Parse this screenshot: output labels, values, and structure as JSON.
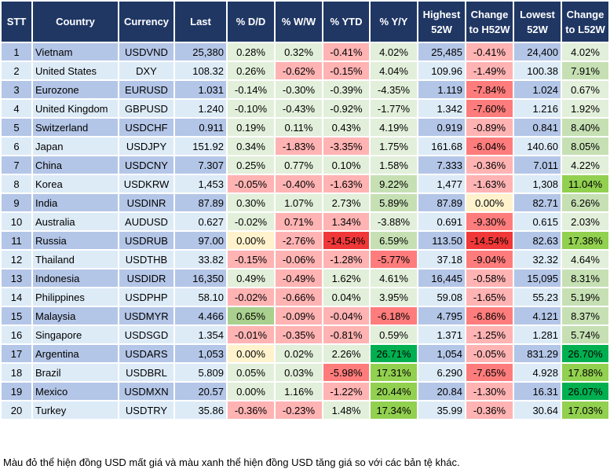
{
  "headers": [
    "STT",
    "Country",
    "Currency",
    "Last",
    "% D/D",
    "% W/W",
    "% YTD",
    "% Y/Y",
    "Highest 52W",
    "Change to H52W",
    "Lowest 52W",
    "Change to L52W"
  ],
  "colors": {
    "header_bg": "#203764",
    "row_odd": "#b4c6e7",
    "row_even": "#ddebf7",
    "g1": "#e2efda",
    "g2": "#c6e0b4",
    "g3": "#a9d08e",
    "g4": "#92d050",
    "g5": "#00b050",
    "r1": "#ffb3b3",
    "r2": "#ff7c7c",
    "r3": "#f03838",
    "y": "#fff2cc"
  },
  "rows": [
    {
      "stt": "1",
      "country": "Vietnam",
      "currency": "USDVND",
      "last": "25,380",
      "dd": "0.28%",
      "ww": "0.32%",
      "ytd": "-0.41%",
      "yy": "4.02%",
      "high": "25,485",
      "chh": "-0.41%",
      "low": "24,400",
      "chl": "4.02%",
      "heat": [
        "g1",
        "g1",
        "r1",
        "g1",
        "r1",
        "g1"
      ]
    },
    {
      "stt": "2",
      "country": "United States",
      "currency": "DXY",
      "last": "108.32",
      "dd": "0.26%",
      "ww": "-0.62%",
      "ytd": "-0.15%",
      "yy": "4.04%",
      "high": "109.96",
      "chh": "-1.49%",
      "low": "100.38",
      "chl": "7.91%",
      "heat": [
        "g1",
        "r1",
        "r1",
        "g1",
        "r1",
        "g2"
      ]
    },
    {
      "stt": "3",
      "country": "Eurozone",
      "currency": "EURUSD",
      "last": "1.031",
      "dd": "-0.14%",
      "ww": "-0.30%",
      "ytd": "-0.39%",
      "yy": "-4.35%",
      "high": "1.119",
      "chh": "-7.84%",
      "low": "1.024",
      "chl": "0.67%",
      "heat": [
        "g1",
        "g1",
        "g1",
        "g1",
        "r2",
        "g1"
      ]
    },
    {
      "stt": "4",
      "country": "United Kingdom",
      "currency": "GBPUSD",
      "last": "1.240",
      "dd": "-0.10%",
      "ww": "-0.43%",
      "ytd": "-0.92%",
      "yy": "-1.77%",
      "high": "1.342",
      "chh": "-7.60%",
      "low": "1.216",
      "chl": "1.92%",
      "heat": [
        "g1",
        "g1",
        "g1",
        "g1",
        "r2",
        "g1"
      ]
    },
    {
      "stt": "5",
      "country": "Switzerland",
      "currency": "USDCHF",
      "last": "0.911",
      "dd": "0.19%",
      "ww": "0.11%",
      "ytd": "0.43%",
      "yy": "4.19%",
      "high": "0.919",
      "chh": "-0.89%",
      "low": "0.841",
      "chl": "8.40%",
      "heat": [
        "g1",
        "g1",
        "g1",
        "g1",
        "r1",
        "g2"
      ]
    },
    {
      "stt": "6",
      "country": "Japan",
      "currency": "USDJPY",
      "last": "151.92",
      "dd": "0.34%",
      "ww": "-1.83%",
      "ytd": "-3.35%",
      "yy": "1.75%",
      "high": "161.68",
      "chh": "-6.04%",
      "low": "140.60",
      "chl": "8.05%",
      "heat": [
        "g1",
        "r1",
        "r1",
        "g1",
        "r2",
        "g2"
      ]
    },
    {
      "stt": "7",
      "country": "China",
      "currency": "USDCNY",
      "last": "7.307",
      "dd": "0.25%",
      "ww": "0.77%",
      "ytd": "0.10%",
      "yy": "1.58%",
      "high": "7.333",
      "chh": "-0.36%",
      "low": "7.011",
      "chl": "4.22%",
      "heat": [
        "g1",
        "g1",
        "g1",
        "g1",
        "r1",
        "g1"
      ]
    },
    {
      "stt": "8",
      "country": "Korea",
      "currency": "USDKRW",
      "last": "1,453",
      "dd": "-0.05%",
      "ww": "-0.40%",
      "ytd": "-1.63%",
      "yy": "9.22%",
      "high": "1,477",
      "chh": "-1.63%",
      "low": "1,308",
      "chl": "11.04%",
      "heat": [
        "r1",
        "r1",
        "r1",
        "g2",
        "r1",
        "g4"
      ]
    },
    {
      "stt": "9",
      "country": "India",
      "currency": "USDINR",
      "last": "87.89",
      "dd": "0.30%",
      "ww": "1.07%",
      "ytd": "2.73%",
      "yy": "5.89%",
      "high": "87.89",
      "chh": "0.00%",
      "low": "82.71",
      "chl": "6.26%",
      "heat": [
        "g1",
        "g1",
        "g1",
        "g2",
        "y",
        "g2"
      ]
    },
    {
      "stt": "10",
      "country": "Australia",
      "currency": "AUDUSD",
      "last": "0.627",
      "dd": "-0.02%",
      "ww": "0.71%",
      "ytd": "1.34%",
      "yy": "-3.88%",
      "high": "0.691",
      "chh": "-9.30%",
      "low": "0.615",
      "chl": "2.03%",
      "heat": [
        "g1",
        "r1",
        "r1",
        "g1",
        "r2",
        "g1"
      ]
    },
    {
      "stt": "11",
      "country": "Russia",
      "currency": "USDRUB",
      "last": "97.00",
      "dd": "0.00%",
      "ww": "-2.76%",
      "ytd": "-14.54%",
      "yy": "6.59%",
      "high": "113.50",
      "chh": "-14.54%",
      "low": "82.63",
      "chl": "17.38%",
      "heat": [
        "y",
        "r1",
        "r3",
        "g2",
        "r3",
        "g4"
      ]
    },
    {
      "stt": "12",
      "country": "Thailand",
      "currency": "USDTHB",
      "last": "33.82",
      "dd": "-0.15%",
      "ww": "-0.06%",
      "ytd": "-1.28%",
      "yy": "-5.77%",
      "high": "37.18",
      "chh": "-9.04%",
      "low": "32.32",
      "chl": "4.64%",
      "heat": [
        "r1",
        "r1",
        "r1",
        "r2",
        "r2",
        "g1"
      ]
    },
    {
      "stt": "13",
      "country": "Indonesia",
      "currency": "USDIDR",
      "last": "16,350",
      "dd": "0.49%",
      "ww": "-0.49%",
      "ytd": "1.62%",
      "yy": "4.61%",
      "high": "16,445",
      "chh": "-0.58%",
      "low": "15,095",
      "chl": "8.31%",
      "heat": [
        "g1",
        "r1",
        "g1",
        "g1",
        "r1",
        "g2"
      ]
    },
    {
      "stt": "14",
      "country": "Philippines",
      "currency": "USDPHP",
      "last": "58.10",
      "dd": "-0.02%",
      "ww": "-0.66%",
      "ytd": "0.04%",
      "yy": "3.95%",
      "high": "59.08",
      "chh": "-1.65%",
      "low": "55.23",
      "chl": "5.19%",
      "heat": [
        "r1",
        "r1",
        "g1",
        "g1",
        "r1",
        "g2"
      ]
    },
    {
      "stt": "15",
      "country": "Malaysia",
      "currency": "USDMYR",
      "last": "4.466",
      "dd": "0.65%",
      "ww": "-0.09%",
      "ytd": "-0.04%",
      "yy": "-6.18%",
      "high": "4.795",
      "chh": "-6.86%",
      "low": "4.121",
      "chl": "8.37%",
      "heat": [
        "g3",
        "r1",
        "r1",
        "r2",
        "r2",
        "g2"
      ]
    },
    {
      "stt": "16",
      "country": "Singapore",
      "currency": "USDSGD",
      "last": "1.354",
      "dd": "-0.01%",
      "ww": "-0.35%",
      "ytd": "-0.81%",
      "yy": "0.59%",
      "high": "1.371",
      "chh": "-1.25%",
      "low": "1.281",
      "chl": "5.74%",
      "heat": [
        "r1",
        "r1",
        "r1",
        "g1",
        "r1",
        "g2"
      ]
    },
    {
      "stt": "17",
      "country": "Argentina",
      "currency": "USDARS",
      "last": "1,053",
      "dd": "0.00%",
      "ww": "0.02%",
      "ytd": "2.26%",
      "yy": "26.71%",
      "high": "1,054",
      "chh": "-0.05%",
      "low": "831.29",
      "chl": "26.70%",
      "heat": [
        "y",
        "g1",
        "g1",
        "g5",
        "r1",
        "g5"
      ]
    },
    {
      "stt": "18",
      "country": "Brazil",
      "currency": "USDBRL",
      "last": "5.809",
      "dd": "0.05%",
      "ww": "0.03%",
      "ytd": "-5.98%",
      "yy": "17.31%",
      "high": "6.290",
      "chh": "-7.65%",
      "low": "4.928",
      "chl": "17.88%",
      "heat": [
        "g1",
        "g1",
        "r2",
        "g4",
        "r2",
        "g4"
      ]
    },
    {
      "stt": "19",
      "country": "Mexico",
      "currency": "USDMXN",
      "last": "20.57",
      "dd": "0.00%",
      "ww": "1.16%",
      "ytd": "-1.22%",
      "yy": "20.44%",
      "high": "20.84",
      "chh": "-1.30%",
      "low": "16.31",
      "chl": "26.07%",
      "heat": [
        "g1",
        "g1",
        "r1",
        "g4",
        "r1",
        "g5"
      ]
    },
    {
      "stt": "20",
      "country": "Turkey",
      "currency": "USDTRY",
      "last": "35.86",
      "dd": "-0.36%",
      "ww": "-0.23%",
      "ytd": "1.48%",
      "yy": "17.34%",
      "high": "35.99",
      "chh": "-0.36%",
      "low": "30.64",
      "chl": "17.03%",
      "heat": [
        "r1",
        "r1",
        "g1",
        "g4",
        "r1",
        "g4"
      ]
    }
  ],
  "footer": "Màu đỏ thể hiện đồng USD mất giá và màu xanh thể hiện đồng USD tăng giá so với các bản tệ khác."
}
